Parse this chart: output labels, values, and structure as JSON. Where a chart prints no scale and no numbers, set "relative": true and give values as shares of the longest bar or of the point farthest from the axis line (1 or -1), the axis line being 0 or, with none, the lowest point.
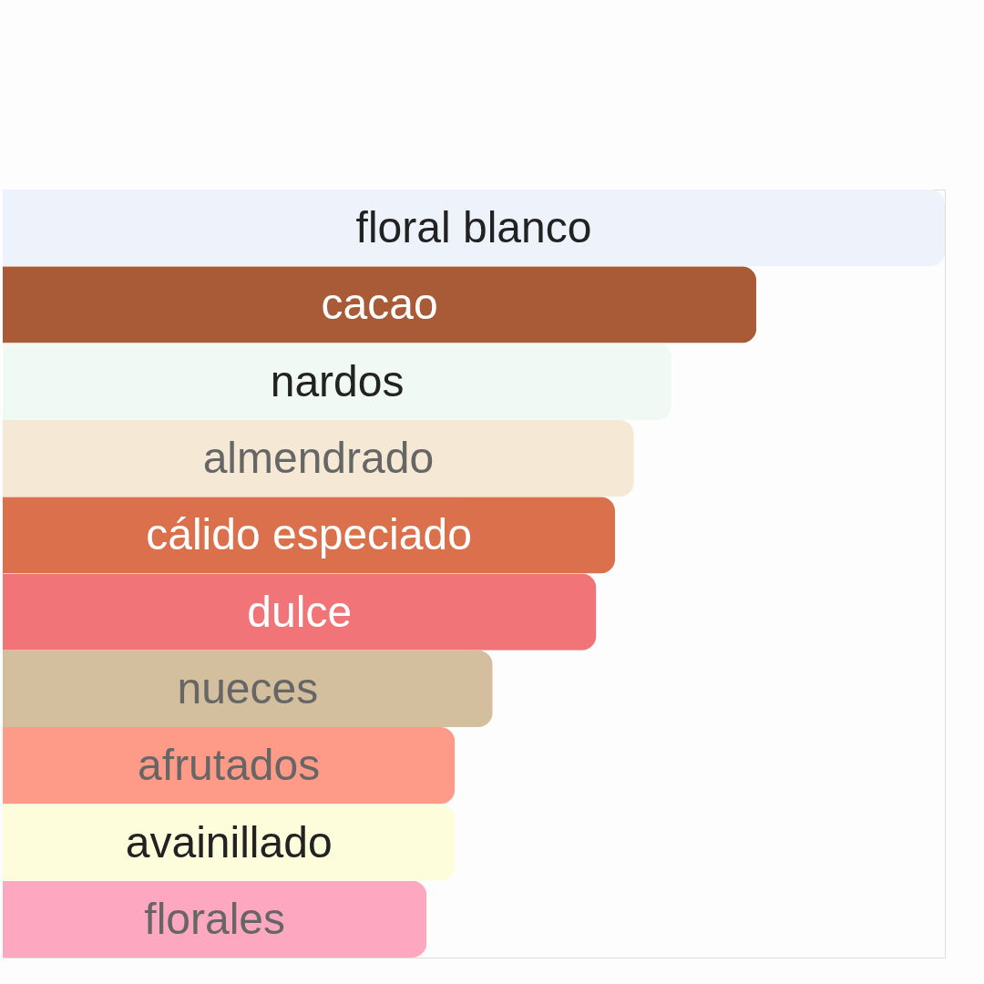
{
  "chart_data": {
    "type": "bar",
    "orientation": "horizontal",
    "relative": true,
    "categories": [
      "floral blanco",
      "cacao",
      "nardos",
      "almendrado",
      "cálido especiado",
      "dulce",
      "nueces",
      "afrutados",
      "avainillado",
      "florales"
    ],
    "values": [
      1,
      0.8,
      0.71,
      0.67,
      0.65,
      0.63,
      0.52,
      0.48,
      0.48,
      0.45
    ],
    "colors": [
      "#edf2fb",
      "#a85b36",
      "#f0f9f4",
      "#f5e9d5",
      "#db704c",
      "#f07478",
      "#d3be9e",
      "#fd9a88",
      "#fefddb",
      "#fea7c1"
    ]
  }
}
